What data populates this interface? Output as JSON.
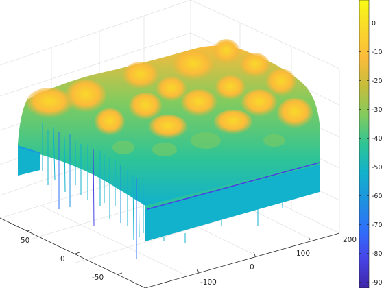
{
  "chart_data": {
    "type": "surface",
    "title": "",
    "xlabel": "",
    "ylabel": "",
    "zlabel": "",
    "x_ticks": [
      -100,
      0,
      100,
      200
    ],
    "y_ticks": [
      50,
      0,
      -50
    ],
    "colorbar": {
      "ticks": [
        0,
        -10,
        -20,
        -30,
        -40,
        -50,
        -60,
        -70,
        -80,
        -90
      ],
      "labels": [
        "0",
        "-10",
        "-20",
        "-30",
        "-40",
        "-50",
        "-60",
        "-70",
        "-80",
        "-90"
      ],
      "colormap": "parula",
      "colormap_stops": [
        "#3e26a8",
        "#4743e6",
        "#2f6ffb",
        "#1e91e0",
        "#12b1cc",
        "#2fc495",
        "#82cb5e",
        "#c5bd3c",
        "#fbbb3a",
        "#f9d82b",
        "#f9fb15"
      ],
      "range": [
        -92,
        8
      ]
    },
    "surface_peak_dB": -10,
    "surface_edge_dB": -48,
    "surface_null_dB": -85,
    "grid": true,
    "colorbar_position": "right"
  }
}
